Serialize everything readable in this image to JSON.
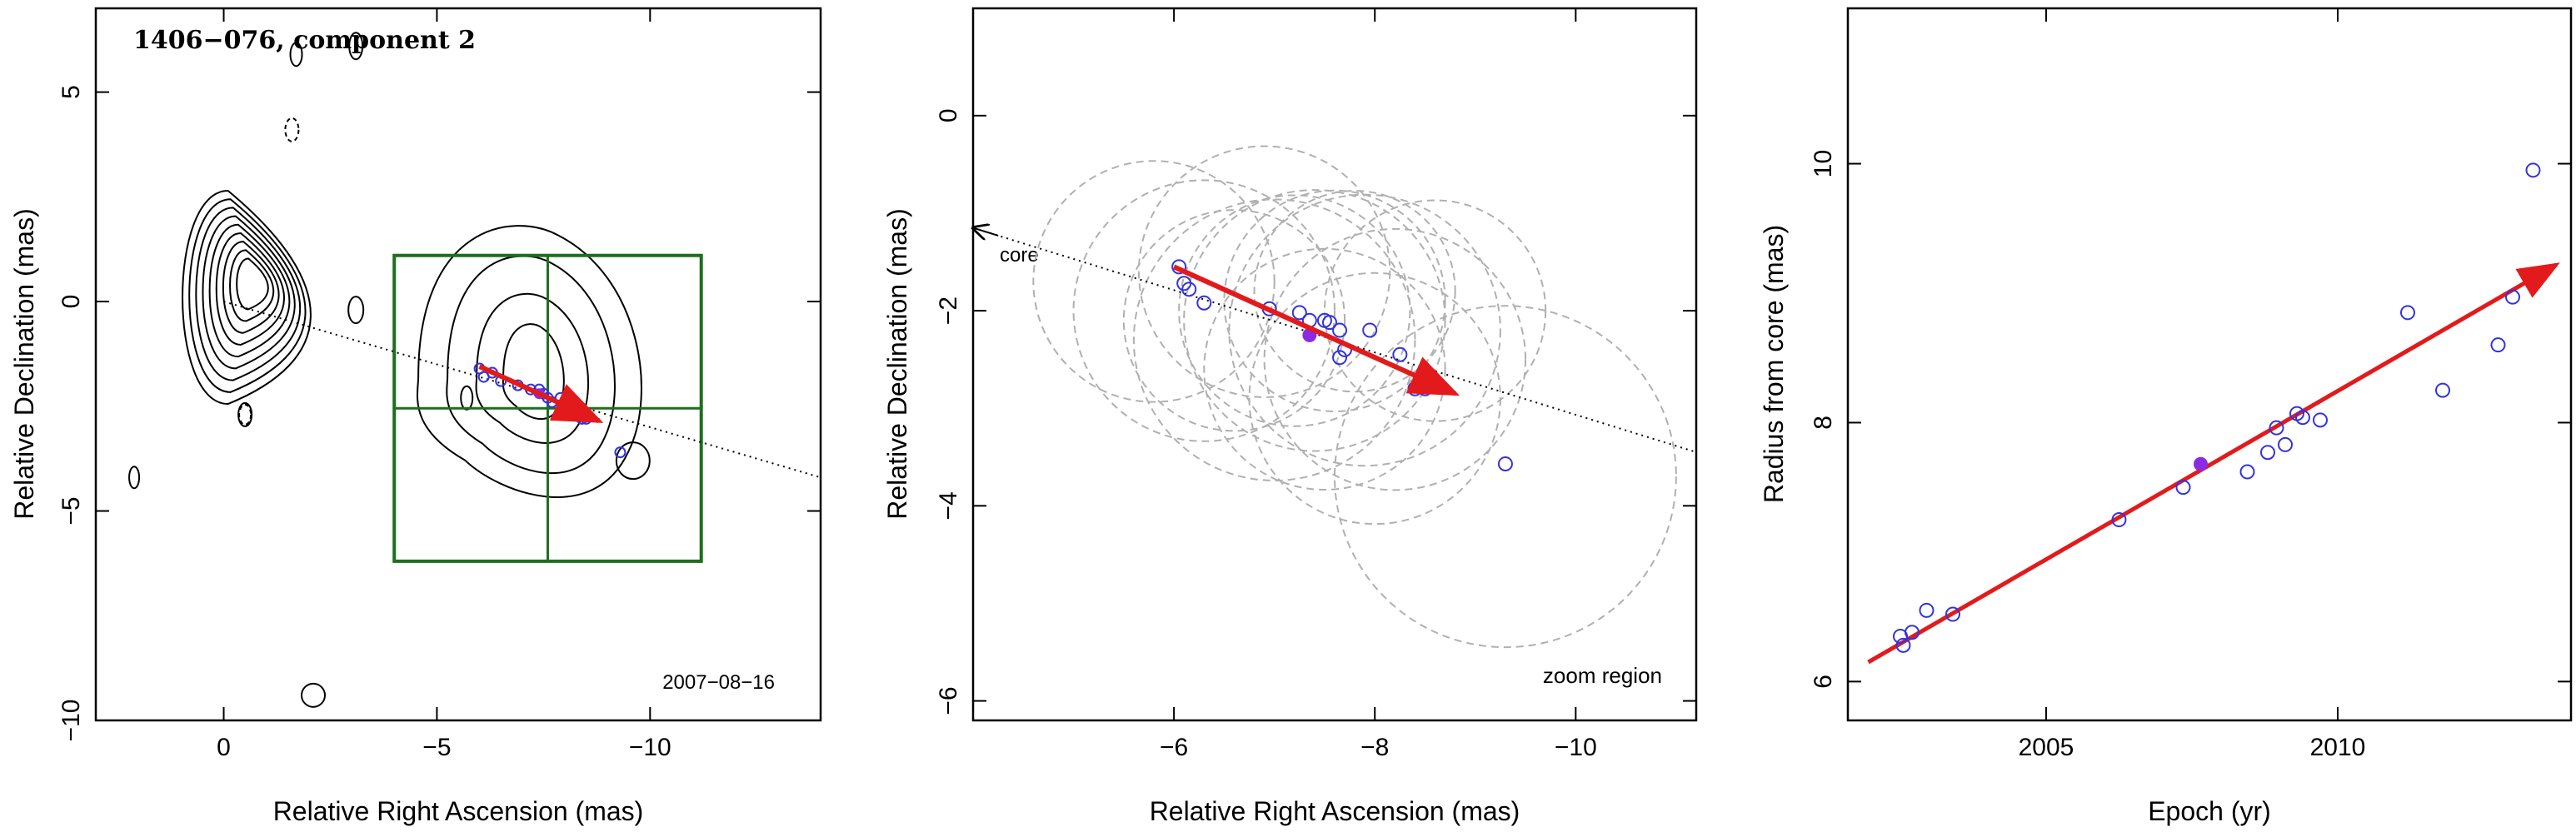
{
  "chart_data": [
    {
      "type": "contour map",
      "title": "1406−076, component 2",
      "xlabel": "Relative Right Ascension (mas)",
      "ylabel": "Relative Declination (mas)",
      "annotation": "2007−08−16",
      "xlim": [
        3,
        -14
      ],
      "ylim": [
        -10,
        7
      ],
      "xticks": [
        0,
        -5,
        -10
      ],
      "xtick_labels": [
        "0",
        "−5",
        "−10"
      ],
      "yticks": [
        5,
        0,
        -5,
        -10
      ],
      "ytick_labels": [
        "5",
        "0",
        "−5",
        "−10"
      ],
      "grid": false,
      "colors": {
        "contour": "#000000",
        "zoom_box": "#1e6e1e",
        "arrow": "#e31a1c",
        "points": "#3333dd"
      },
      "points": [
        [
          -6.0,
          -1.6
        ],
        [
          -6.1,
          -1.8
        ],
        [
          -6.3,
          -1.7
        ],
        [
          -6.5,
          -1.9
        ],
        [
          -6.9,
          -2.0
        ],
        [
          -7.2,
          -2.1
        ],
        [
          -7.4,
          -2.1
        ],
        [
          -7.5,
          -2.2
        ],
        [
          -7.6,
          -2.3
        ],
        [
          -7.7,
          -2.4
        ],
        [
          -7.9,
          -2.3
        ],
        [
          -8.2,
          -2.6
        ],
        [
          -8.4,
          -2.8
        ],
        [
          -8.5,
          -2.8
        ],
        [
          -9.3,
          -3.6
        ]
      ],
      "highlight_point": [
        -7.4,
        -2.2
      ],
      "zoom_box": {
        "x": [
          -4,
          -11.2
        ],
        "y": [
          1.1,
          -6.2
        ]
      },
      "jet_line": {
        "from": [
          0,
          0
        ],
        "to": [
          -14,
          -4.2
        ]
      },
      "motion_arrow": {
        "from": [
          -6.0,
          -1.55
        ],
        "to": [
          -8.8,
          -2.85
        ]
      }
    },
    {
      "type": "scatter",
      "xlabel": "Relative Right Ascension (mas)",
      "ylabel": "Relative Declination (mas)",
      "annotations": [
        "core",
        "zoom region"
      ],
      "xlim": [
        -4,
        -11.2
      ],
      "ylim": [
        -6.2,
        1.1
      ],
      "xticks": [
        -6,
        -8,
        -10
      ],
      "xtick_labels": [
        "−6",
        "−8",
        "−10"
      ],
      "yticks": [
        0,
        -2,
        -4,
        -6
      ],
      "ytick_labels": [
        "0",
        "−2",
        "−4",
        "−6"
      ],
      "grid": false,
      "colors": {
        "circles": "#b0b0b0",
        "arrow": "#e31a1c",
        "points": "#3333dd",
        "highlight": "#8a2be2"
      },
      "points": [
        [
          -6.05,
          -1.55
        ],
        [
          -6.1,
          -1.72
        ],
        [
          -6.15,
          -1.78
        ],
        [
          -6.3,
          -1.92
        ],
        [
          -6.95,
          -1.98
        ],
        [
          -7.25,
          -2.02
        ],
        [
          -7.35,
          -2.1
        ],
        [
          -7.5,
          -2.1
        ],
        [
          -7.55,
          -2.12
        ],
        [
          -7.65,
          -2.2
        ],
        [
          -7.7,
          -2.4
        ],
        [
          -7.65,
          -2.48
        ],
        [
          -7.95,
          -2.2
        ],
        [
          -8.25,
          -2.45
        ],
        [
          -8.4,
          -2.8
        ],
        [
          -8.5,
          -2.8
        ],
        [
          -9.3,
          -3.57
        ]
      ],
      "highlight_point": [
        -7.35,
        -2.25
      ],
      "fwhm_circles": [
        [
          -5.8,
          -1.7,
          1.2
        ],
        [
          -6.3,
          -2.0,
          1.3
        ],
        [
          -6.9,
          -1.6,
          1.25
        ],
        [
          -7.4,
          -2.1,
          1.3
        ],
        [
          -7.0,
          -2.3,
          1.4
        ],
        [
          -7.6,
          -1.9,
          1.1
        ],
        [
          -7.9,
          -2.2,
          1.35
        ],
        [
          -8.2,
          -2.5,
          1.3
        ],
        [
          -7.5,
          -2.6,
          1.2
        ],
        [
          -8.6,
          -2.0,
          1.1
        ],
        [
          -8.0,
          -2.9,
          1.25
        ],
        [
          -7.8,
          -1.8,
          1.0
        ],
        [
          -9.3,
          -3.7,
          1.7
        ],
        [
          -7.2,
          -2.0,
          1.15
        ],
        [
          -6.6,
          -2.1,
          1.1
        ]
      ],
      "jet_line": {
        "from": [
          -4.0,
          -1.15
        ],
        "to": [
          -11.2,
          -3.45
        ]
      },
      "motion_arrow": {
        "from": [
          -6.0,
          -1.55
        ],
        "to": [
          -8.8,
          -2.85
        ]
      }
    },
    {
      "type": "scatter",
      "xlabel": "Epoch (yr)",
      "ylabel": "Radius from core (mas)",
      "xlim": [
        2001.6,
        2014.0
      ],
      "ylim": [
        5.7,
        11.2
      ],
      "xticks": [
        2005,
        2010
      ],
      "xtick_labels": [
        "2005",
        "2010"
      ],
      "yticks": [
        6,
        8,
        10
      ],
      "ytick_labels": [
        "6",
        "8",
        "10"
      ],
      "grid": false,
      "colors": {
        "arrow": "#e31a1c",
        "points": "#3333dd",
        "highlight": "#8a2be2"
      },
      "points": [
        [
          2002.5,
          6.35
        ],
        [
          2002.55,
          6.28
        ],
        [
          2002.7,
          6.38
        ],
        [
          2002.95,
          6.55
        ],
        [
          2003.4,
          6.52
        ],
        [
          2006.25,
          7.25
        ],
        [
          2007.35,
          7.5
        ],
        [
          2008.45,
          7.62
        ],
        [
          2008.8,
          7.77
        ],
        [
          2008.95,
          7.96
        ],
        [
          2009.1,
          7.83
        ],
        [
          2009.3,
          8.07
        ],
        [
          2009.4,
          8.04
        ],
        [
          2009.7,
          8.02
        ],
        [
          2011.2,
          8.85
        ],
        [
          2011.8,
          8.25
        ],
        [
          2012.75,
          8.6
        ],
        [
          2013.0,
          8.97
        ],
        [
          2013.35,
          9.95
        ]
      ],
      "highlight_point": [
        2007.65,
        7.68
      ],
      "trend_arrow": {
        "from": [
          2001.95,
          6.15
        ],
        "to": [
          2013.75,
          9.22
        ]
      }
    }
  ]
}
